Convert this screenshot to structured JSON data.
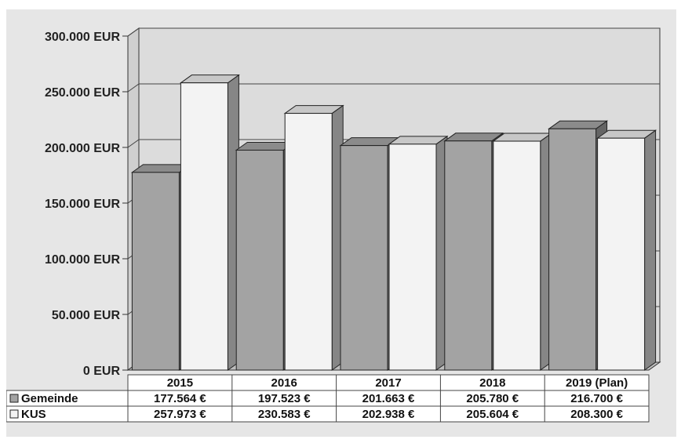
{
  "chart_data": {
    "type": "bar",
    "categories": [
      "2015",
      "2016",
      "2017",
      "2018",
      "2019 (Plan)"
    ],
    "series": [
      {
        "name": "Gemeinde",
        "values": [
          177564,
          197523,
          201663,
          205780,
          216700
        ],
        "color": "#a3a3a3"
      },
      {
        "name": "KUS",
        "values": [
          257973,
          230583,
          202938,
          205604,
          208300
        ],
        "color": "#f3f3f3"
      }
    ],
    "y_ticks": [
      "0 EUR",
      "50.000 EUR",
      "100.000 EUR",
      "150.000 EUR",
      "200.000 EUR",
      "250.000 EUR",
      "300.000 EUR"
    ],
    "ylim": [
      0,
      300000
    ],
    "grid": true,
    "legend": "data table below chart",
    "table": {
      "rows": [
        {
          "label": "Gemeinde",
          "marker": "filled-gray-square",
          "cells": [
            "177.564 €",
            "197.523 €",
            "201.663 €",
            "205.780 €",
            "216.700 €"
          ]
        },
        {
          "label": "KUS",
          "marker": "white-square",
          "cells": [
            "257.973 €",
            "230.583 €",
            "202.938 €",
            "205.604 €",
            "208.300 €"
          ]
        }
      ]
    },
    "colors": {
      "background": "#e6e6e6",
      "plot": "#dcdcdc",
      "grid": "#444444"
    }
  }
}
